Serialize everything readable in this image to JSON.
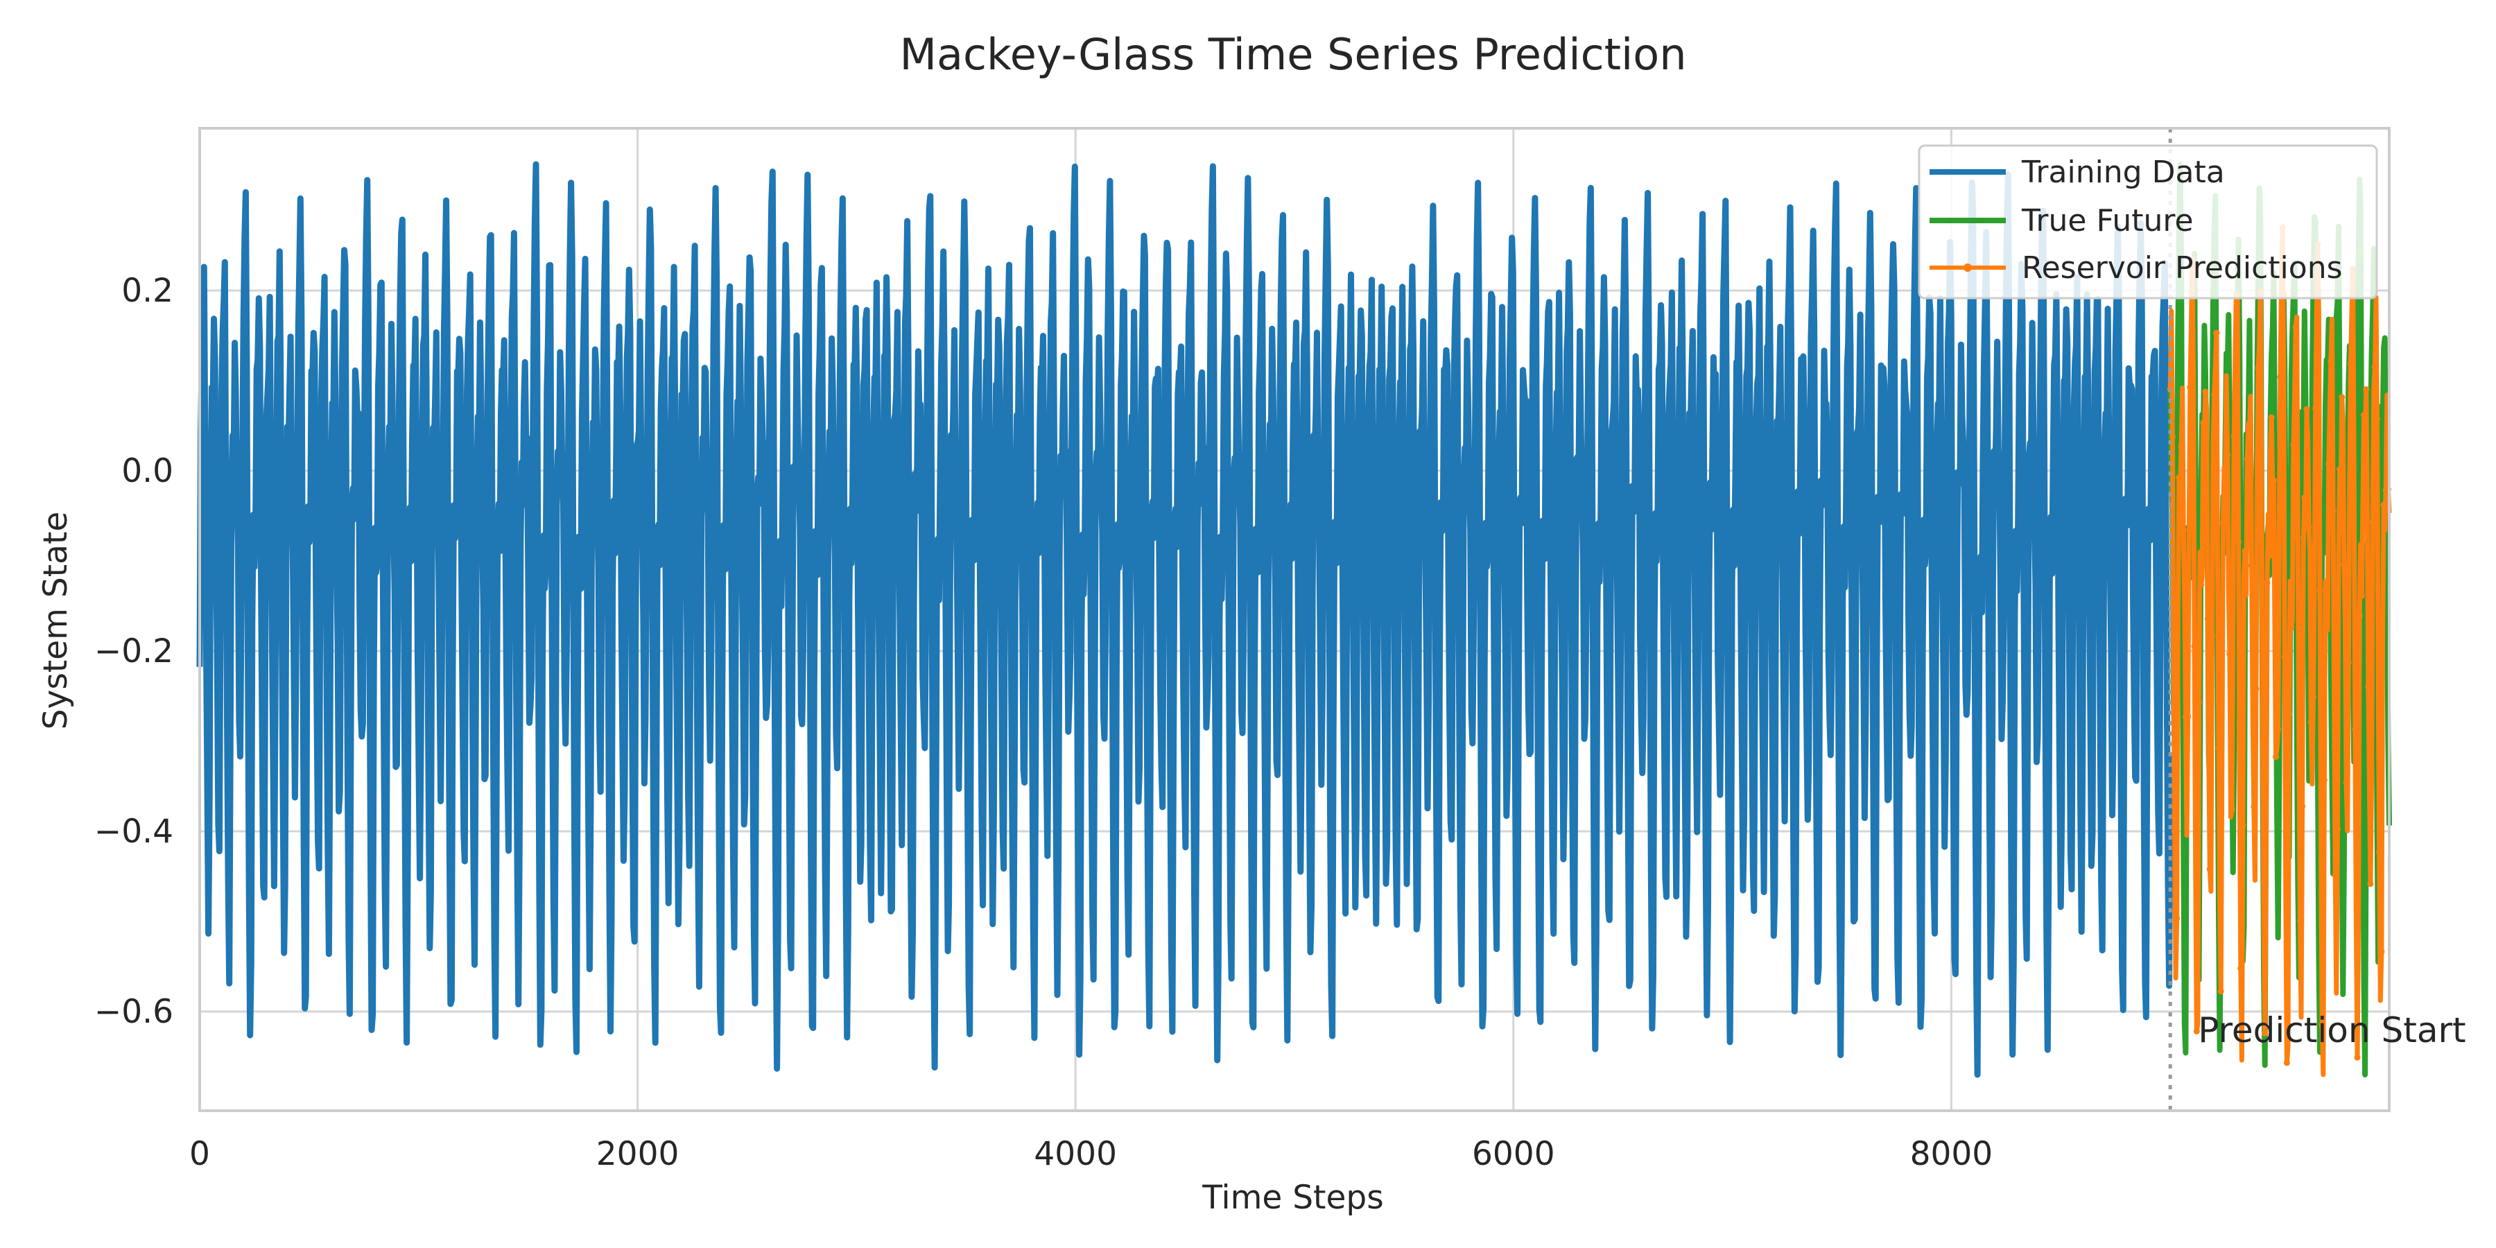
{
  "chart_data": {
    "type": "line",
    "title": "Mackey-Glass Time Series Prediction",
    "xlabel": "Time Steps",
    "ylabel": "System State",
    "xlim": [
      0,
      10000
    ],
    "ylim": [
      -0.71,
      0.38
    ],
    "xticks": [
      {
        "value": 0,
        "label": "0"
      },
      {
        "value": 2000,
        "label": "2000"
      },
      {
        "value": 4000,
        "label": "4000"
      },
      {
        "value": 6000,
        "label": "6000"
      },
      {
        "value": 8000,
        "label": "8000"
      }
    ],
    "yticks": [
      {
        "value": 0.2,
        "label": "0.2"
      },
      {
        "value": 0.0,
        "label": "0.0"
      },
      {
        "value": -0.2,
        "label": "−0.2"
      },
      {
        "value": -0.4,
        "label": "−0.4"
      },
      {
        "value": -0.6,
        "label": "−0.6"
      }
    ],
    "grid": true,
    "legend_position": "top-right",
    "series": [
      {
        "name": "Training Data",
        "color": "#1f77b4",
        "x_range": [
          0,
          9000
        ],
        "y_range": [
          -0.67,
          0.34
        ]
      },
      {
        "name": "True Future",
        "color": "#2ca02c",
        "x_range": [
          9000,
          10000
        ],
        "y_range": [
          -0.67,
          0.34
        ]
      },
      {
        "name": "Reservoir Predictions",
        "color": "#ff7f0e",
        "marker": "dot",
        "x_range": [
          9000,
          10000
        ],
        "y_range": [
          -0.67,
          0.27
        ]
      }
    ],
    "annotations": [
      {
        "text": "Prediction Start",
        "x": 9000,
        "y": -0.62,
        "line_style": "dotted"
      }
    ]
  }
}
